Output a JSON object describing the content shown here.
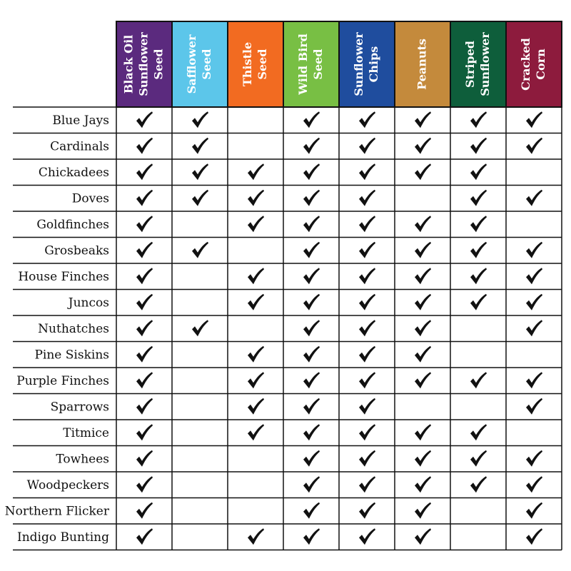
{
  "table": {
    "columns": [
      {
        "lines": [
          "Black Oil",
          "Sunflower",
          "Seed"
        ],
        "color": "#5b2a7e"
      },
      {
        "lines": [
          "Safflower",
          "Seed"
        ],
        "color": "#5cc6ea"
      },
      {
        "lines": [
          "Thistle",
          "Seed"
        ],
        "color": "#f26b21"
      },
      {
        "lines": [
          "Wild Bird",
          "Seed"
        ],
        "color": "#78bf44"
      },
      {
        "lines": [
          "Sunflower",
          "Chips"
        ],
        "color": "#1f4d9e"
      },
      {
        "lines": [
          "Peanuts"
        ],
        "color": "#c48a3c"
      },
      {
        "lines": [
          "Striped",
          "Sunflower"
        ],
        "color": "#0e5e3b"
      },
      {
        "lines": [
          "Cracked",
          "Corn"
        ],
        "color": "#8d1b3d"
      }
    ],
    "rows": [
      {
        "bird": "Blue Jays",
        "cells": [
          true,
          true,
          false,
          true,
          true,
          true,
          true,
          true
        ]
      },
      {
        "bird": "Cardinals",
        "cells": [
          true,
          true,
          false,
          true,
          true,
          true,
          true,
          true
        ]
      },
      {
        "bird": "Chickadees",
        "cells": [
          true,
          true,
          true,
          true,
          true,
          true,
          true,
          false
        ]
      },
      {
        "bird": "Doves",
        "cells": [
          true,
          true,
          true,
          true,
          true,
          false,
          true,
          true
        ]
      },
      {
        "bird": "Goldfinches",
        "cells": [
          true,
          false,
          true,
          true,
          true,
          true,
          true,
          false
        ]
      },
      {
        "bird": "Grosbeaks",
        "cells": [
          true,
          true,
          false,
          true,
          true,
          true,
          true,
          true
        ]
      },
      {
        "bird": "House Finches",
        "cells": [
          true,
          false,
          true,
          true,
          true,
          true,
          true,
          true
        ]
      },
      {
        "bird": "Juncos",
        "cells": [
          true,
          false,
          true,
          true,
          true,
          true,
          true,
          true
        ]
      },
      {
        "bird": "Nuthatches",
        "cells": [
          true,
          true,
          false,
          true,
          true,
          true,
          false,
          true
        ]
      },
      {
        "bird": "Pine Siskins",
        "cells": [
          true,
          false,
          true,
          true,
          true,
          true,
          false,
          false
        ]
      },
      {
        "bird": "Purple Finches",
        "cells": [
          true,
          false,
          true,
          true,
          true,
          true,
          true,
          true
        ]
      },
      {
        "bird": "Sparrows",
        "cells": [
          true,
          false,
          true,
          true,
          true,
          false,
          false,
          true
        ]
      },
      {
        "bird": "Titmice",
        "cells": [
          true,
          false,
          true,
          true,
          true,
          true,
          true,
          false
        ]
      },
      {
        "bird": "Towhees",
        "cells": [
          true,
          false,
          false,
          true,
          true,
          true,
          true,
          true
        ]
      },
      {
        "bird": "Woodpeckers",
        "cells": [
          true,
          false,
          false,
          true,
          true,
          true,
          true,
          true
        ]
      },
      {
        "bird": "Northern Flicker",
        "cells": [
          true,
          false,
          false,
          true,
          true,
          true,
          false,
          true
        ]
      },
      {
        "bird": "Indigo Bunting",
        "cells": [
          true,
          false,
          true,
          true,
          true,
          true,
          false,
          true
        ]
      }
    ]
  }
}
